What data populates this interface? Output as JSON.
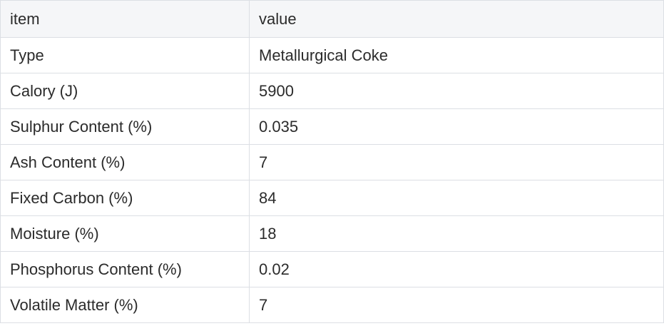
{
  "table": {
    "headers": [
      "item",
      "value"
    ],
    "rows": [
      {
        "item": "Type",
        "value": "Metallurgical Coke"
      },
      {
        "item": "Calory (J)",
        "value": "5900"
      },
      {
        "item": "Sulphur Content (%)",
        "value": "0.035"
      },
      {
        "item": "Ash Content (%)",
        "value": "7"
      },
      {
        "item": "Fixed Carbon (%)",
        "value": "84"
      },
      {
        "item": "Moisture (%)",
        "value": "18"
      },
      {
        "item": "Phosphorus Content (%)",
        "value": "0.02"
      },
      {
        "item": "Volatile Matter (%)",
        "value": "7"
      }
    ]
  },
  "colors": {
    "border": "#dcdfe4",
    "header_bg": "#f5f6f8",
    "text": "#2b2b2b"
  }
}
